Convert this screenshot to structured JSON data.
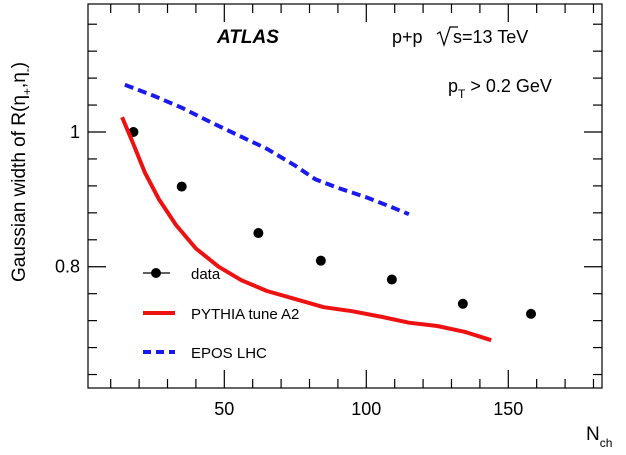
{
  "chart_data": {
    "type": "line",
    "xlabel": "N",
    "xlabel_sub": "ch",
    "ylabel": "Gaussian width of R(η",
    "ylabel_sub1": "+",
    "ylabel_mid": ",η",
    "ylabel_sub2": "-",
    "ylabel_end": ")",
    "xlim": [
      2,
      183
    ],
    "ylim": [
      0.62,
      1.19
    ],
    "x_ticks": [
      50,
      100,
      150
    ],
    "x_tick_labels": [
      "50",
      "100",
      "150"
    ],
    "y_ticks": [
      0.8,
      1.0
    ],
    "y_tick_labels": [
      "0.8",
      "1"
    ],
    "annotations": {
      "experiment": "ATLAS",
      "collision": "p+p",
      "energy": "s=13 TeV",
      "cut_prefix": "p",
      "cut_sub": "T",
      "cut_suffix": " > 0.2 GeV"
    },
    "legend_position": "bottom-left",
    "series": [
      {
        "name": "data",
        "style": "markers",
        "color": "#000000",
        "x": [
          18,
          35,
          62,
          84,
          109,
          134,
          158
        ],
        "y": [
          1.0,
          0.919,
          0.85,
          0.809,
          0.781,
          0.745,
          0.73
        ]
      },
      {
        "name": "PYTHIA tune A2",
        "style": "solid",
        "color": "#ee1111",
        "x": [
          14,
          18,
          22,
          27,
          33,
          40,
          48,
          56,
          65,
          75,
          85,
          95,
          105,
          115,
          125,
          135,
          144
        ],
        "y": [
          1.022,
          0.982,
          0.94,
          0.9,
          0.862,
          0.827,
          0.8,
          0.78,
          0.764,
          0.752,
          0.74,
          0.734,
          0.726,
          0.717,
          0.712,
          0.703,
          0.691
        ]
      },
      {
        "name": "EPOS LHC",
        "style": "dashed",
        "color": "#1a1aee",
        "x": [
          15,
          25,
          35,
          45,
          55,
          65,
          75,
          82,
          90,
          100,
          108,
          115
        ],
        "y": [
          1.07,
          1.054,
          1.036,
          1.015,
          0.995,
          0.975,
          0.95,
          0.93,
          0.917,
          0.903,
          0.89,
          0.878
        ]
      }
    ]
  }
}
